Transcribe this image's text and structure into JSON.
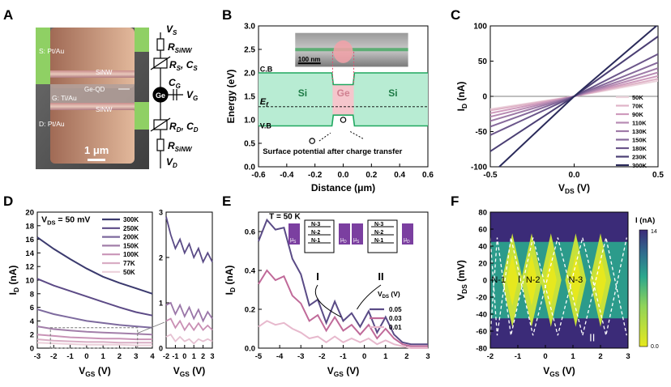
{
  "panels": {
    "A": {
      "letter": "A",
      "terminals": [
        "S: Pt/Au",
        "G: Ti/Au",
        "D: Pt/Au"
      ],
      "wire_labels": [
        "SiNW",
        "Ge-QD",
        "SiNW"
      ],
      "scalebar": "1 μm",
      "circuit": {
        "vs": "V",
        "vs_sub": "S",
        "rsinw_top": "R",
        "rsinw_sub": "SiNW",
        "rs": "R",
        "rs_sub": "S",
        "cs": "C",
        "cs_sub": "S",
        "cg": "C",
        "cg_sub": "G",
        "vg": "V",
        "vg_sub": "G",
        "ge": "Ge",
        "rd": "R",
        "rd_sub": "D",
        "cd": "C",
        "cd_sub": "D",
        "rsinw_bot": "R",
        "rsinw_bot_sub": "SiNW",
        "vd": "V",
        "vd_sub": "D"
      }
    },
    "B": {
      "letter": "B"
    },
    "C": {
      "letter": "C"
    },
    "D": {
      "letter": "D"
    },
    "E": {
      "letter": "E"
    },
    "F": {
      "letter": "F"
    }
  },
  "colors": {
    "green_fill": "#b8ecd3",
    "green_line": "#20a860",
    "pink_fill": "#f5c6cc",
    "purple": "#7b3fa0",
    "navy": "#2a2a66"
  },
  "chart_data": [
    {
      "panel": "B",
      "type": "line",
      "xlabel": "Distance (μm)",
      "ylabel": "Energy (eV)",
      "xlim": [
        -0.6,
        0.6
      ],
      "ylim": [
        0.0,
        3.0
      ],
      "xticks": [
        "-0.6",
        "-0.4",
        "-0.2",
        "0.0",
        "0.2",
        "0.4",
        "0.6"
      ],
      "yticks": [
        "0.0",
        "0.5",
        "1.0",
        "1.5",
        "2.0",
        "2.5",
        "3.0"
      ],
      "series": [
        {
          "name": "C.B",
          "x": [
            -0.6,
            -0.08,
            -0.07,
            0.07,
            0.08,
            0.6
          ],
          "y": [
            2.0,
            2.0,
            1.75,
            1.75,
            2.0,
            2.0
          ]
        },
        {
          "name": "V.B",
          "x": [
            -0.6,
            -0.08,
            -0.07,
            0.07,
            0.08,
            0.6
          ],
          "y": [
            0.87,
            0.87,
            1.1,
            1.1,
            0.87,
            0.87
          ]
        },
        {
          "name": "E_f",
          "x": [
            -0.6,
            0.6
          ],
          "y": [
            1.28,
            1.28
          ]
        }
      ],
      "annotations": [
        "C.B",
        "V.B",
        "E_f",
        "Si",
        "Ge",
        "Si",
        "100 nm",
        "Surface potential after charge transfer"
      ]
    },
    {
      "panel": "C",
      "type": "line",
      "xlabel": "V_DS (V)",
      "ylabel": "I_D (nA)",
      "xlim": [
        -0.5,
        0.5
      ],
      "ylim": [
        -100,
        100
      ],
      "xticks": [
        "-0.5",
        "0.0",
        "0.5"
      ],
      "yticks": [
        "-100",
        "-50",
        "0",
        "50",
        "100"
      ],
      "legend": "bottom-right",
      "series": [
        {
          "name": "50K",
          "x": [
            -0.5,
            0,
            0.5
          ],
          "y": [
            -18,
            0,
            22
          ],
          "color": "#ecd3dc"
        },
        {
          "name": "70K",
          "x": [
            -0.5,
            0,
            0.5
          ],
          "y": [
            -20,
            0,
            25
          ],
          "color": "#dfb3c7"
        },
        {
          "name": "90K",
          "x": [
            -0.5,
            0,
            0.5
          ],
          "y": [
            -24,
            0,
            29
          ],
          "color": "#cf9bbd"
        },
        {
          "name": "110K",
          "x": [
            -0.5,
            0,
            0.5
          ],
          "y": [
            -29,
            0,
            34
          ],
          "color": "#b88bb3"
        },
        {
          "name": "130K",
          "x": [
            -0.5,
            0,
            0.5
          ],
          "y": [
            -35,
            0,
            40
          ],
          "color": "#9f7ba8"
        },
        {
          "name": "150K",
          "x": [
            -0.5,
            0,
            0.5
          ],
          "y": [
            -43,
            0,
            48
          ],
          "color": "#86699b"
        },
        {
          "name": "180K",
          "x": [
            -0.5,
            0,
            0.5
          ],
          "y": [
            -55,
            0,
            60
          ],
          "color": "#6b568a"
        },
        {
          "name": "230K",
          "x": [
            -0.5,
            0,
            0.5
          ],
          "y": [
            -78,
            0,
            85
          ],
          "color": "#4b3f74"
        },
        {
          "name": "300K",
          "x": [
            -0.5,
            0,
            0.5
          ],
          "y": [
            -112,
            0,
            102
          ],
          "color": "#2a2a5a"
        }
      ]
    },
    {
      "panel": "D",
      "type": "line",
      "title": "V_DS = 50 mV",
      "xlabel": "V_GS (V)",
      "ylabel": "I_D (nA)",
      "xlim": [
        -3,
        4
      ],
      "ylim": [
        0,
        20
      ],
      "xticks": [
        "-3",
        "-2",
        "-1",
        "0",
        "1",
        "2",
        "3",
        "4"
      ],
      "yticks": [
        "0",
        "2",
        "4",
        "6",
        "8",
        "10",
        "12",
        "14",
        "16",
        "18",
        "20"
      ],
      "legend": "top-right",
      "series": [
        {
          "name": "300K",
          "x": [
            -3,
            -2,
            -1,
            0,
            1,
            2,
            3,
            4
          ],
          "y": [
            16.3,
            14.6,
            13.1,
            11.7,
            10.5,
            9.6,
            8.8,
            8.0
          ],
          "color": "#3b3a6e"
        },
        {
          "name": "250K",
          "x": [
            -3,
            -2,
            -1,
            0,
            1,
            2,
            3,
            4
          ],
          "y": [
            10.2,
            9.2,
            8.4,
            7.6,
            6.8,
            6.0,
            5.3,
            4.8
          ],
          "color": "#5c4a86"
        },
        {
          "name": "200K",
          "x": [
            -3,
            -2,
            -1,
            0,
            1,
            2,
            3,
            4
          ],
          "y": [
            5.7,
            5.0,
            4.5,
            4.0,
            3.7,
            3.4,
            3.2,
            3.0
          ],
          "color": "#7d6a9e"
        },
        {
          "name": "150K",
          "x": [
            -3,
            -2,
            -1,
            0,
            1,
            2,
            3,
            4
          ],
          "y": [
            3.2,
            2.8,
            2.6,
            2.4,
            2.3,
            2.2,
            2.1,
            2.0
          ],
          "color": "#a27ea9"
        },
        {
          "name": "100K",
          "x": [
            -3,
            -2,
            -1,
            0,
            1,
            2,
            3,
            4
          ],
          "y": [
            2.0,
            1.8,
            1.6,
            1.5,
            1.4,
            1.4,
            1.3,
            1.3
          ],
          "color": "#c994b7"
        },
        {
          "name": "77K",
          "x": [
            -3,
            -2,
            -1,
            0,
            1,
            2,
            3,
            4
          ],
          "y": [
            1.3,
            1.1,
            1.0,
            0.9,
            0.9,
            0.8,
            0.8,
            0.8
          ],
          "color": "#d9adc4"
        },
        {
          "name": "50K",
          "x": [
            -3,
            -2,
            -1,
            0,
            1,
            2,
            3,
            4
          ],
          "y": [
            0.8,
            0.7,
            0.6,
            0.5,
            0.5,
            0.5,
            0.4,
            0.4
          ],
          "color": "#ecd0da"
        }
      ]
    },
    {
      "panel": "D-inset",
      "type": "line",
      "xlabel": "V_GS (V)",
      "xlim": [
        -2,
        3
      ],
      "ylim": [
        0,
        3
      ],
      "xticks": [
        "-2",
        "-1",
        "0",
        "1",
        "2",
        "3"
      ],
      "yticks": [
        "0",
        "1",
        "2",
        "3"
      ],
      "series": [
        {
          "name": "150K",
          "x": [
            -2,
            -1.5,
            -1,
            -0.5,
            0,
            0.5,
            1,
            1.5,
            2,
            2.5,
            3
          ],
          "y": [
            2.9,
            2.5,
            2.2,
            2.4,
            2.1,
            2.3,
            2.0,
            2.2,
            1.9,
            2.1,
            1.9
          ],
          "color": "#5a4b86"
        },
        {
          "name": "100K",
          "x": [
            -2,
            -1.5,
            -1,
            -0.5,
            0,
            0.5,
            1,
            1.5,
            2,
            2.5,
            3
          ],
          "y": [
            0.95,
            1.0,
            0.75,
            0.95,
            0.7,
            0.9,
            0.65,
            0.85,
            0.6,
            0.8,
            0.65
          ],
          "color": "#9a76a8"
        },
        {
          "name": "77K",
          "x": [
            -2,
            -1.5,
            -1,
            -0.5,
            0,
            0.5,
            1,
            1.5,
            2,
            2.5,
            3
          ],
          "y": [
            0.6,
            0.65,
            0.45,
            0.6,
            0.4,
            0.55,
            0.4,
            0.55,
            0.4,
            0.5,
            0.4
          ],
          "color": "#c98fb4"
        },
        {
          "name": "50K",
          "x": [
            -2,
            -1.5,
            -1,
            -0.5,
            0,
            0.5,
            1,
            1.5,
            2,
            2.5,
            3
          ],
          "y": [
            0.25,
            0.3,
            0.15,
            0.25,
            0.15,
            0.2,
            0.1,
            0.2,
            0.15,
            0.2,
            0.15
          ],
          "color": "#e6c1d2"
        }
      ]
    },
    {
      "panel": "E",
      "type": "line",
      "xlabel": "V_GS (V)",
      "ylabel": "I_D (nA)",
      "xlim": [
        -5,
        3
      ],
      "ylim": [
        0,
        0.7
      ],
      "xticks": [
        "-5",
        "-4",
        "-3",
        "-2",
        "-1",
        "0",
        "1",
        "2",
        "3"
      ],
      "yticks": [
        "0.0",
        "0.2",
        "0.4",
        "0.6"
      ],
      "legend": "bottom-right",
      "legend_title": "V_DS (V)",
      "annotations": [
        "T = 50 K",
        "N-3",
        "N-2",
        "N-1",
        "μ_S",
        "μ_D",
        "I",
        "II"
      ],
      "series": [
        {
          "name": "0.05",
          "x": [
            -5,
            -4.6,
            -4.2,
            -3.8,
            -3.4,
            -3.0,
            -2.6,
            -2.2,
            -1.8,
            -1.4,
            -1.0,
            -0.6,
            -0.2,
            0.2,
            0.6,
            1.0,
            1.4,
            1.8,
            2.2,
            2.6,
            3.0
          ],
          "y": [
            0.55,
            0.66,
            0.61,
            0.62,
            0.46,
            0.38,
            0.22,
            0.25,
            0.13,
            0.24,
            0.14,
            0.18,
            0.11,
            0.19,
            0.08,
            0.16,
            0.07,
            0.03,
            0.02,
            0.02,
            0.02
          ],
          "color": "#5a4b86"
        },
        {
          "name": "0.03",
          "x": [
            -5,
            -4.6,
            -4.2,
            -3.8,
            -3.4,
            -3.0,
            -2.6,
            -2.2,
            -1.8,
            -1.4,
            -1.0,
            -0.6,
            -0.2,
            0.2,
            0.6,
            1.0,
            1.4,
            1.8,
            2.2,
            2.6,
            3.0
          ],
          "y": [
            0.33,
            0.4,
            0.35,
            0.37,
            0.27,
            0.23,
            0.14,
            0.17,
            0.09,
            0.16,
            0.09,
            0.12,
            0.07,
            0.12,
            0.05,
            0.1,
            0.05,
            0.02,
            0.01,
            0.01,
            0.01
          ],
          "color": "#c06a99"
        },
        {
          "name": "0.01",
          "x": [
            -5,
            -4.6,
            -4.2,
            -3.8,
            -3.4,
            -3.0,
            -2.6,
            -2.2,
            -1.8,
            -1.4,
            -1.0,
            -0.6,
            -0.2,
            0.2,
            0.6,
            1.0,
            1.4,
            1.8,
            2.2,
            2.6,
            3.0
          ],
          "y": [
            0.11,
            0.14,
            0.12,
            0.13,
            0.1,
            0.08,
            0.05,
            0.06,
            0.03,
            0.06,
            0.03,
            0.05,
            0.03,
            0.05,
            0.02,
            0.04,
            0.02,
            0.01,
            0.0,
            0.0,
            0.0
          ],
          "color": "#e7b9cd"
        }
      ]
    },
    {
      "panel": "F",
      "type": "heatmap",
      "xlabel": "V_GS (V)",
      "ylabel": "V_DS (mV)",
      "xlim": [
        -2,
        3
      ],
      "ylim": [
        -80,
        80
      ],
      "xticks": [
        "-2",
        "-1",
        "0",
        "1",
        "2",
        "3"
      ],
      "yticks": [
        "-80",
        "-60",
        "-40",
        "-20",
        "0",
        "20",
        "40",
        "60",
        "80"
      ],
      "colorbar": {
        "label": "I (nA)",
        "max": "14",
        "min": "0.0"
      },
      "annotations": [
        "N-1",
        "I",
        "N-2",
        "N-3",
        "II"
      ],
      "diamond_centers": [
        -1.2,
        -0.5,
        0.2,
        1.1,
        2.0
      ]
    }
  ]
}
